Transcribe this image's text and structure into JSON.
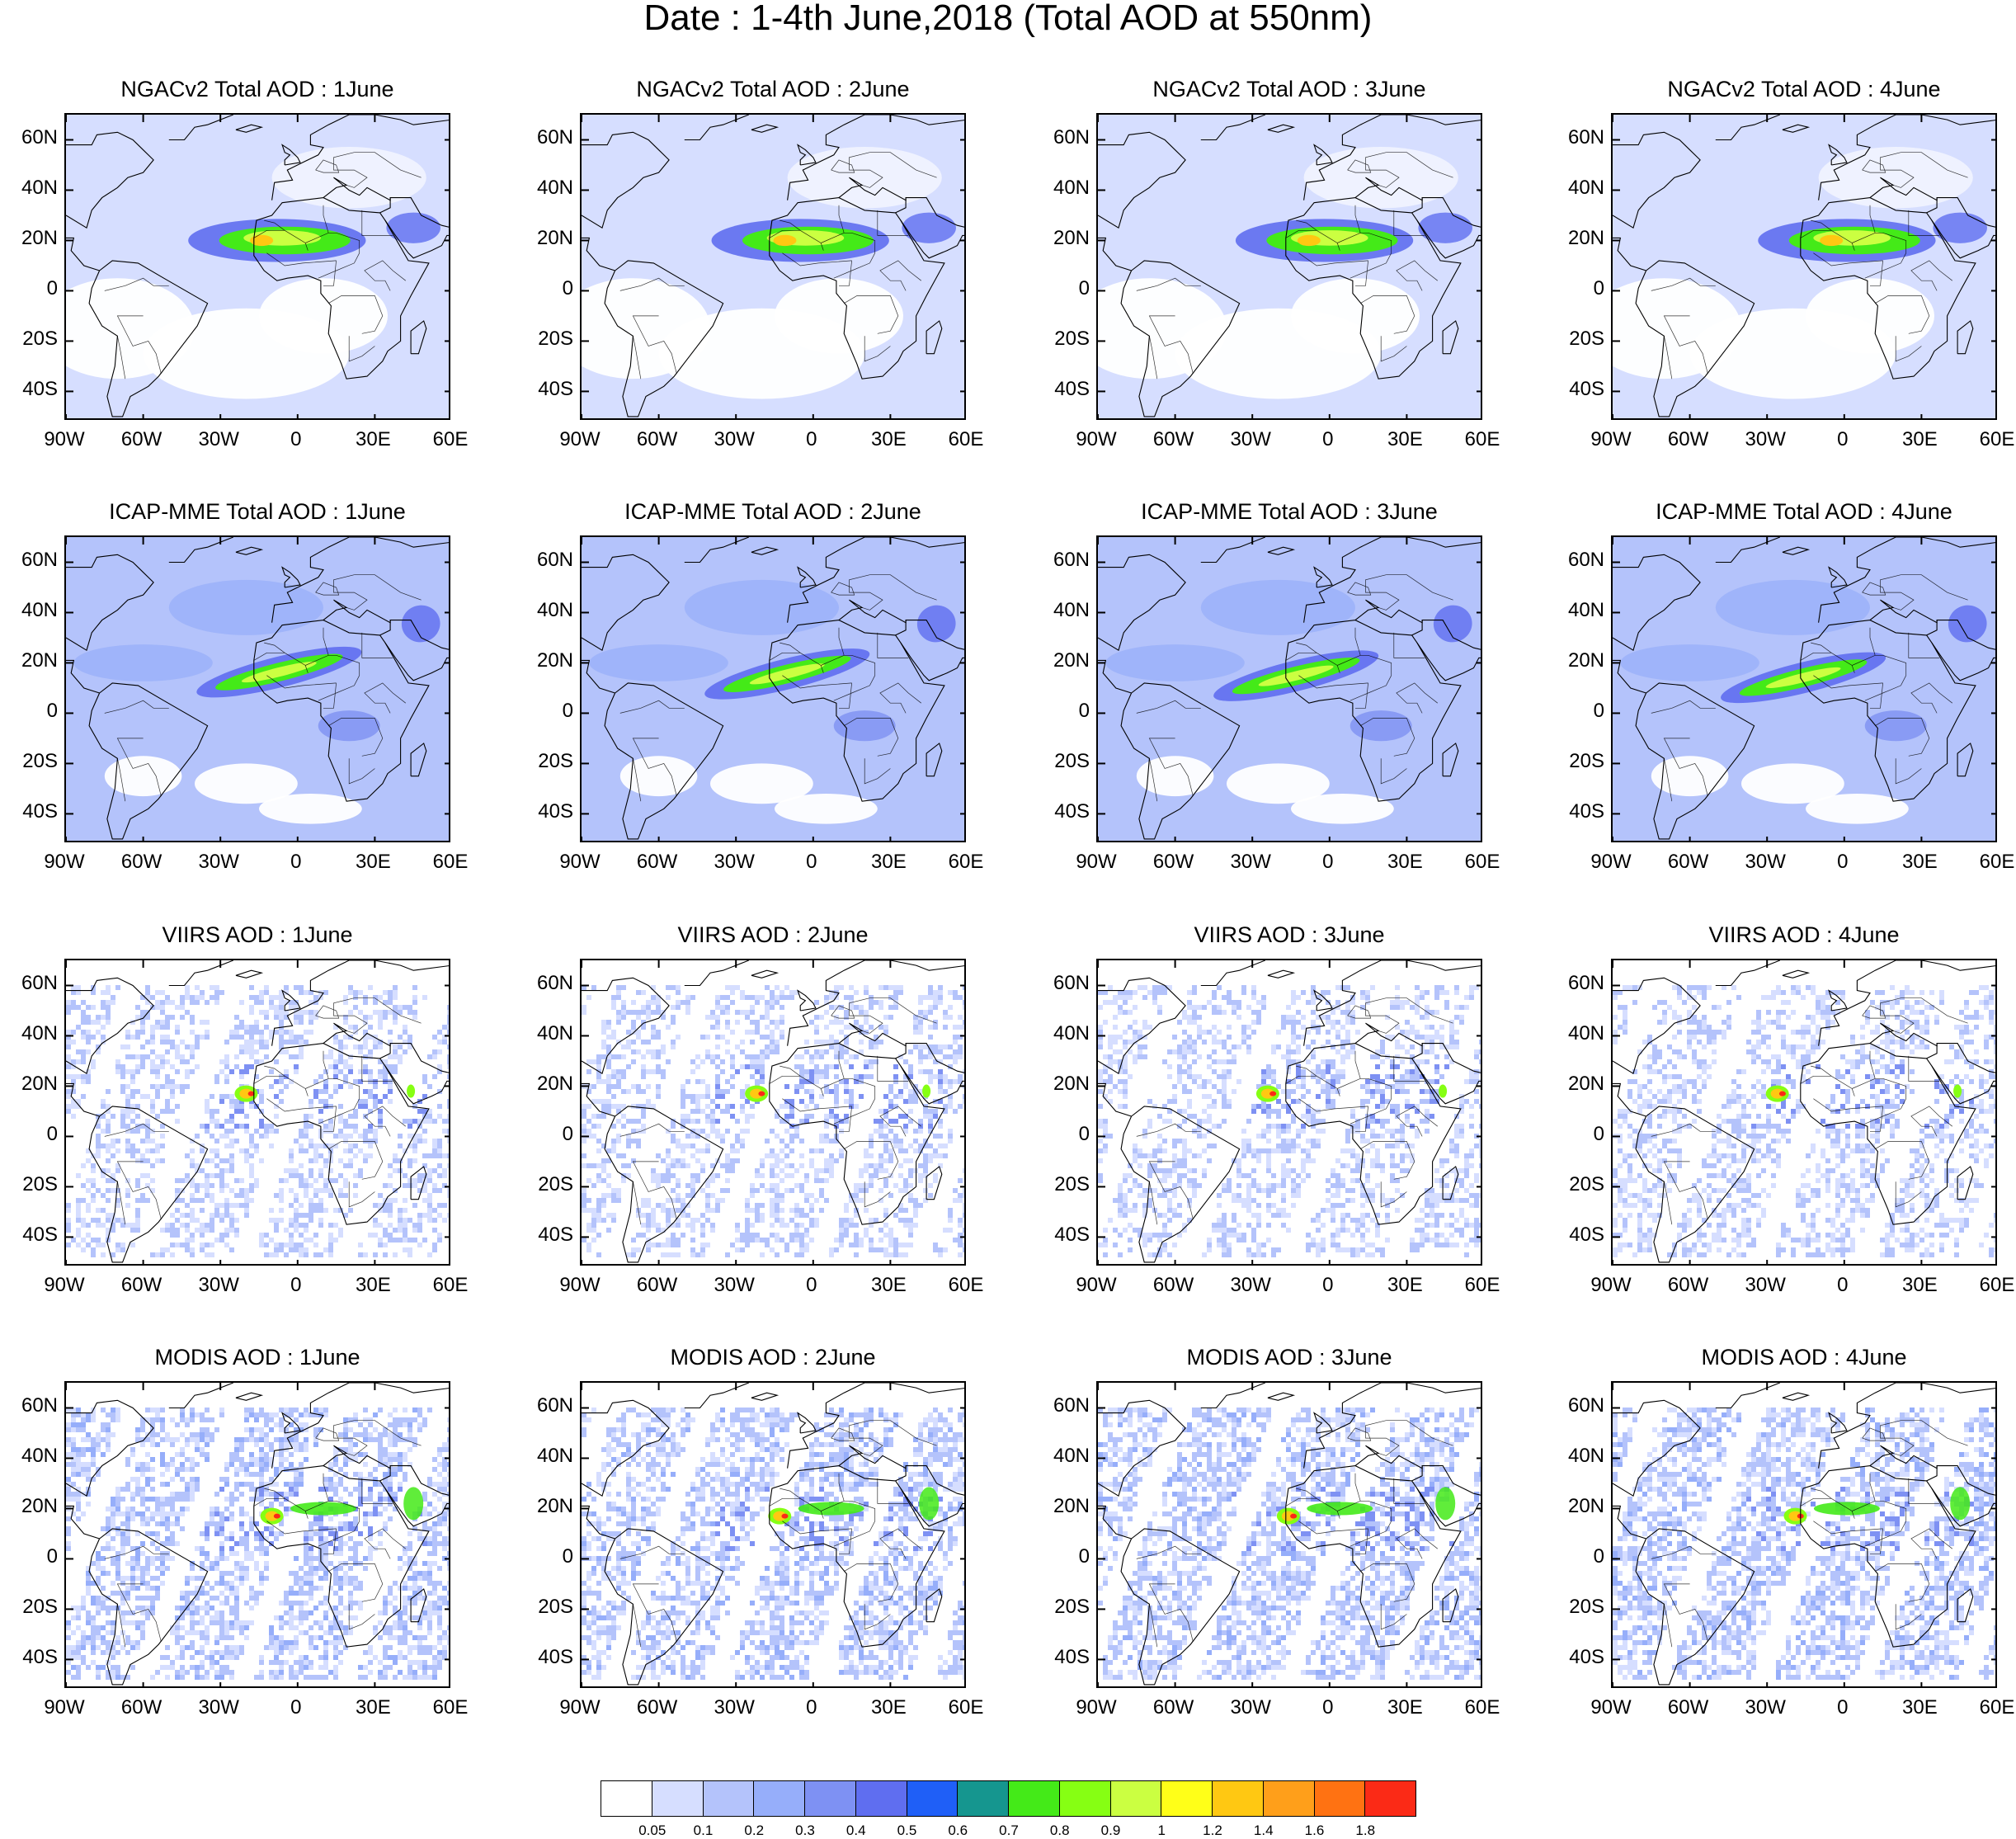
{
  "title": "Date : 1-4th June,2018 (Total AOD at 550nm)",
  "rows": [
    {
      "titles": [
        "NGACv2 Total AOD : 1June",
        "NGACv2 Total AOD : 2June",
        "NGACv2 Total AOD : 3June",
        "NGACv2 Total AOD : 4June"
      ]
    },
    {
      "titles": [
        "ICAP-MME Total AOD : 1June",
        "ICAP-MME Total AOD : 2June",
        "ICAP-MME Total AOD : 3June",
        "ICAP-MME Total AOD : 4June"
      ]
    },
    {
      "titles": [
        "VIIRS AOD : 1June",
        "VIIRS AOD : 2June",
        "VIIRS AOD : 3June",
        "VIIRS AOD : 4June"
      ]
    },
    {
      "titles": [
        "MODIS AOD : 1June",
        "MODIS AOD : 2June",
        "MODIS AOD : 3June",
        "MODIS AOD : 4June"
      ]
    }
  ],
  "lon_ticks": [
    "90W",
    "60W",
    "30W",
    "0",
    "30E",
    "60E"
  ],
  "lat_ticks": [
    "60N",
    "40N",
    "20N",
    "0",
    "20S",
    "40S"
  ],
  "colorbar": {
    "labels": [
      "0.05",
      "0.1",
      "0.2",
      "0.3",
      "0.4",
      "0.5",
      "0.6",
      "0.7",
      "0.8",
      "0.9",
      "1",
      "1.2",
      "1.4",
      "1.6",
      "1.8"
    ],
    "colors": [
      "#ffffff",
      "#d6deff",
      "#b4c3fb",
      "#96aefa",
      "#7e91f3",
      "#5f6ef0",
      "#1f5ff7",
      "#15968f",
      "#44ea18",
      "#86ff13",
      "#cbff41",
      "#ffff18",
      "#ffc812",
      "#ff9f1a",
      "#ff7212",
      "#fb2a16"
    ]
  }
}
